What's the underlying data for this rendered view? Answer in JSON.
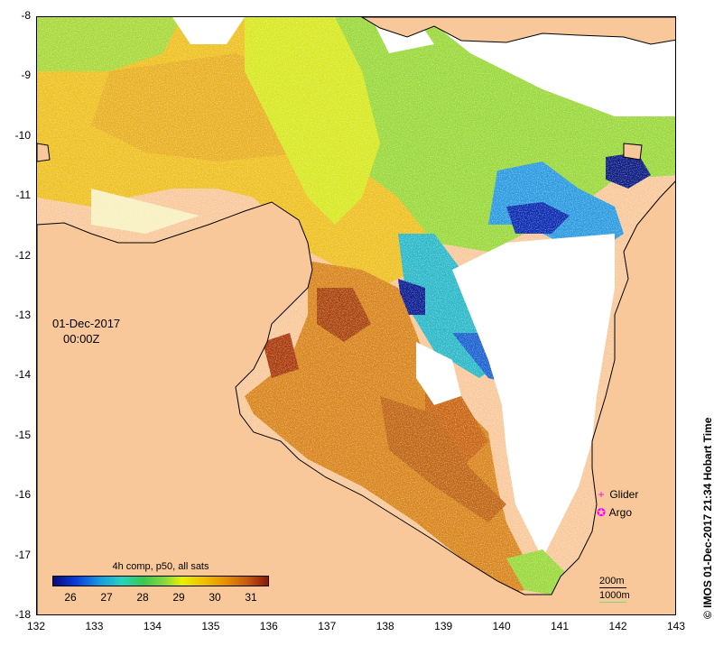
{
  "map": {
    "x_ticks": [
      "132",
      "133",
      "134",
      "135",
      "136",
      "137",
      "138",
      "139",
      "140",
      "141",
      "142",
      "143"
    ],
    "y_ticks": [
      "-8",
      "-9",
      "-10",
      "-11",
      "-12",
      "-13",
      "-14",
      "-15",
      "-16",
      "-17",
      "-18"
    ],
    "lon_range": [
      132,
      143
    ],
    "lat_range": [
      -18,
      -8
    ],
    "land_color": "#f8c89a",
    "cloud_color": "#ffffff"
  },
  "timestamp": {
    "date": "01-Dec-2017",
    "time": "00:00Z"
  },
  "colorbar": {
    "title": "4h comp, p50, all sats",
    "labels": [
      "26",
      "27",
      "28",
      "29",
      "30",
      "31"
    ],
    "range": [
      25.5,
      31.5
    ]
  },
  "legend": {
    "glider_label": "Glider",
    "argo_label": "Argo",
    "glider_marker": "+",
    "argo_marker": "✪"
  },
  "scale": {
    "line_200": "200m",
    "line_1000": "1000m"
  },
  "credit": "© IMOS 01-Dec-2017 21:34 Hobart Time"
}
